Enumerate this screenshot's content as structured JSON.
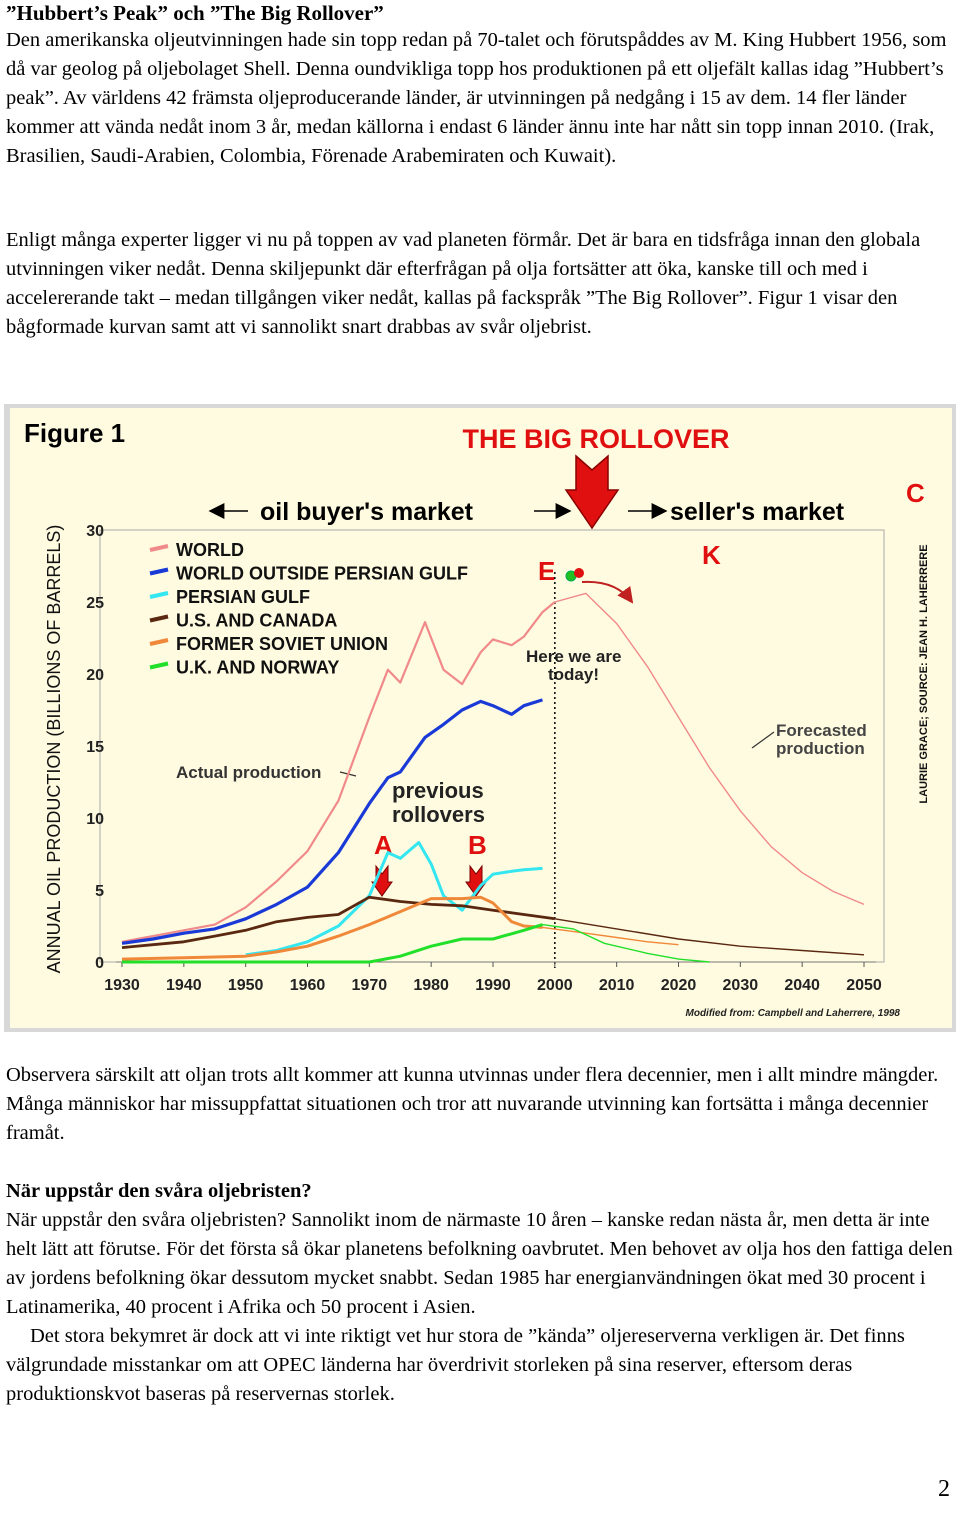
{
  "intro": {
    "title": "”Hubbert’s Peak” och ”The Big Rollover”",
    "paragraphs": [
      "Den amerikanska oljeutvinningen hade sin topp redan på 70-talet och förutspåddes av M. King Hubbert 1956, som då var geolog på oljebolaget Shell. Denna oundvikliga topp hos produktionen på ett oljefält kallas idag ”Hubbert’s peak”. Av världens 42 främsta oljeproducerande länder, är utvinningen på nedgång i 15 av dem. 14 fler länder kommer att vända nedåt inom 3 år, medan källorna i endast 6 länder ännu inte har nått sin topp innan 2010. (Irak, Brasilien, Saudi-Arabien, Colombia, Förenade Arabemiraten och Kuwait).",
      "Enligt många experter ligger vi nu på toppen av vad planeten förmår. Det är bara en tidsfråga innan den globala utvinningen viker nedåt. Denna skiljepunkt där efterfrågan på olja fortsätter att öka, kanske till och med i accelererande takt – medan tillgången viker nedåt, kallas på fackspråk ”The Big Rollover”. Figur 1 visar den bågformade kurvan samt att vi sannolikt snart drabbas av svår oljebrist."
    ]
  },
  "figure": {
    "fig_label": "Figure 1",
    "headline": "THE BIG ROLLOVER",
    "buyers_market": "oil buyer's market",
    "sellers_market": "seller's market",
    "label_c": "C",
    "label_k": "K",
    "label_e": "E",
    "label_a": "A",
    "label_b": "B",
    "here_line1": "Here we are",
    "here_line2": "today!",
    "forecast_line1": "Forecasted",
    "forecast_line2": "production",
    "actual": "Actual production",
    "previous_line1": "previous",
    "previous_line2": "rollovers",
    "source": "LAURIE GRACE; SOURCE: JEAN H. LAHERRERE",
    "modified": "Modified from: Campbell and Laherrere, 1998",
    "colors": {
      "world": "#f08a8a",
      "world_outside": "#1a3ad8",
      "persian_gulf": "#33e6f0",
      "us_canada": "#5a2810",
      "former_soviet": "#f0883a",
      "uk_norway": "#22e02a",
      "headline": "#e01010",
      "background": "#fffbe0"
    },
    "chart_data": {
      "type": "line",
      "title": "",
      "xlabel": "",
      "ylabel": "ANNUAL OIL PRODUCTION (BILLIONS OF BARRELS)",
      "xlim": [
        1930,
        2050
      ],
      "ylim": [
        0,
        30
      ],
      "xticks": [
        "1930",
        "1940",
        "1950",
        "1960",
        "1970",
        "1980",
        "1990",
        "2000",
        "2010",
        "2020",
        "2030",
        "2040",
        "2050"
      ],
      "yticks": [
        "0",
        "5",
        "10",
        "15",
        "20",
        "25",
        "30"
      ],
      "series": [
        {
          "name": "WORLD",
          "key": "world",
          "x": [
            1930,
            1935,
            1940,
            1945,
            1950,
            1955,
            1960,
            1965,
            1970,
            1973,
            1975,
            1979,
            1982,
            1985,
            1988,
            1990,
            1993,
            1995,
            1998,
            2000,
            2005,
            2010,
            2015,
            2020,
            2025,
            2030,
            2035,
            2040,
            2045,
            2050
          ],
          "y": [
            1.4,
            1.8,
            2.2,
            2.6,
            3.8,
            5.6,
            7.7,
            11.2,
            17.0,
            20.3,
            19.4,
            23.6,
            20.3,
            19.3,
            21.5,
            22.4,
            22.0,
            22.6,
            24.3,
            25.0,
            25.6,
            23.5,
            20.5,
            17.0,
            13.5,
            10.5,
            8.0,
            6.2,
            4.9,
            4.0
          ]
        },
        {
          "name": "WORLD OUTSIDE PERSIAN GULF",
          "key": "world_outside",
          "x": [
            1930,
            1935,
            1940,
            1945,
            1950,
            1955,
            1960,
            1965,
            1970,
            1973,
            1975,
            1979,
            1982,
            1985,
            1988,
            1990,
            1993,
            1995,
            1998
          ],
          "y": [
            1.3,
            1.6,
            2.0,
            2.3,
            3.0,
            4.0,
            5.2,
            7.6,
            11.0,
            12.8,
            13.2,
            15.6,
            16.5,
            17.5,
            18.1,
            17.8,
            17.2,
            17.8,
            18.2
          ]
        },
        {
          "name": "PERSIAN GULF",
          "key": "persian_gulf",
          "x": [
            1950,
            1955,
            1960,
            1965,
            1970,
            1973,
            1975,
            1978,
            1980,
            1982,
            1985,
            1988,
            1990,
            1993,
            1995,
            1998
          ],
          "y": [
            0.5,
            0.8,
            1.4,
            2.5,
            4.6,
            7.6,
            7.2,
            8.3,
            6.8,
            4.6,
            3.6,
            5.3,
            6.1,
            6.3,
            6.4,
            6.5
          ]
        },
        {
          "name": "U.S. AND CANADA",
          "key": "us_canada",
          "x": [
            1930,
            1935,
            1940,
            1945,
            1950,
            1955,
            1960,
            1965,
            1970,
            1975,
            1980,
            1985,
            1990,
            1995,
            2000,
            2010,
            2020,
            2030,
            2040,
            2050
          ],
          "y": [
            1.0,
            1.2,
            1.4,
            1.8,
            2.2,
            2.8,
            3.1,
            3.3,
            4.5,
            4.2,
            4.0,
            3.9,
            3.6,
            3.3,
            3.0,
            2.3,
            1.6,
            1.1,
            0.8,
            0.5
          ]
        },
        {
          "name": "FORMER SOVIET UNION",
          "key": "former_soviet",
          "x": [
            1930,
            1940,
            1950,
            1955,
            1960,
            1965,
            1970,
            1975,
            1980,
            1985,
            1988,
            1990,
            1993,
            1995,
            1998,
            2005,
            2010,
            2015,
            2020
          ],
          "y": [
            0.2,
            0.3,
            0.4,
            0.7,
            1.1,
            1.8,
            2.6,
            3.5,
            4.4,
            4.4,
            4.5,
            4.1,
            2.8,
            2.5,
            2.4,
            2.0,
            1.7,
            1.4,
            1.2
          ]
        },
        {
          "name": "U.K. AND NORWAY",
          "key": "uk_norway",
          "x": [
            1930,
            1970,
            1975,
            1980,
            1985,
            1990,
            1995,
            1998,
            2003,
            2008,
            2015,
            2020,
            2025
          ],
          "y": [
            0.0,
            0.0,
            0.4,
            1.1,
            1.6,
            1.6,
            2.2,
            2.6,
            2.3,
            1.3,
            0.6,
            0.2,
            0.0
          ]
        }
      ]
    }
  },
  "after": {
    "paragraph": "Observera särskilt att oljan trots allt kommer att kunna utvinnas under flera decennier, men i allt mindre mängder. Många människor har missuppfattat situationen och tror att nuvarande utvinning kan fortsätta i många decennier framåt.",
    "subheading": "När uppstår den svåra oljebristen?",
    "paragraph2": "När uppstår den svåra oljebristen? Sannolikt inom de närmaste 10 åren – kanske redan nästa år, men detta är inte helt lätt att förutse. För det första så ökar planetens befolkning oavbrutet. Men behovet av olja hos den fattiga delen av jordens befolkning ökar dessutom mycket snabbt. Sedan 1985 har energianvändningen ökat med 30 procent i Latinamerika, 40 procent i Afrika och 50 procent i Asien.",
    "paragraph3": "Det stora bekymret är dock att vi inte riktigt vet hur stora de ”kända” oljereserverna verkligen är. Det finns välgrundade misstankar om att OPEC länderna har överdrivit storleken på sina reserver, eftersom deras produktionskvot baseras på reservernas storlek."
  },
  "page_number": "2"
}
